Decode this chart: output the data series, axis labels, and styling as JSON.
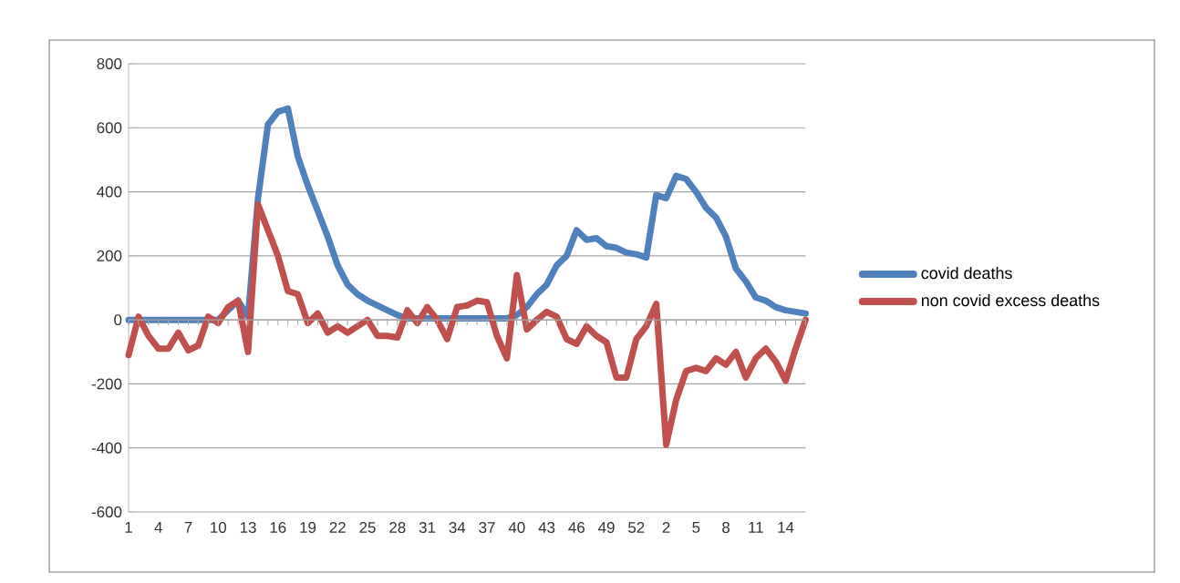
{
  "chart_data": {
    "type": "line",
    "categories": [
      "1",
      null,
      null,
      "4",
      null,
      null,
      "7",
      null,
      null,
      "10",
      null,
      null,
      "13",
      null,
      null,
      "16",
      null,
      null,
      "19",
      null,
      null,
      "22",
      null,
      null,
      "25",
      null,
      null,
      "28",
      null,
      null,
      "31",
      null,
      null,
      "34",
      null,
      null,
      "37",
      null,
      null,
      "40",
      null,
      null,
      "43",
      null,
      null,
      "46",
      null,
      null,
      "49",
      null,
      null,
      "52",
      null,
      null,
      "2",
      null,
      null,
      "5",
      null,
      null,
      "8",
      null,
      null,
      "11",
      null,
      null,
      "14",
      null,
      null
    ],
    "series": [
      {
        "name": "covid deaths",
        "color": "#4f81bd",
        "values": [
          0,
          0,
          0,
          0,
          0,
          0,
          0,
          0,
          0,
          0,
          30,
          60,
          10,
          380,
          610,
          650,
          660,
          510,
          420,
          340,
          260,
          170,
          110,
          80,
          60,
          45,
          30,
          15,
          5,
          5,
          5,
          5,
          5,
          5,
          5,
          5,
          5,
          5,
          5,
          15,
          40,
          80,
          110,
          170,
          200,
          280,
          250,
          255,
          230,
          225,
          210,
          205,
          195,
          390,
          380,
          450,
          440,
          400,
          350,
          320,
          260,
          160,
          120,
          70,
          60,
          40,
          30,
          25,
          20
        ]
      },
      {
        "name": "non covid excess deaths",
        "color": "#c0504d",
        "values": [
          -110,
          10,
          -50,
          -90,
          -90,
          -40,
          -95,
          -80,
          10,
          -10,
          40,
          60,
          -100,
          360,
          280,
          200,
          90,
          80,
          -10,
          20,
          -40,
          -20,
          -40,
          -20,
          0,
          -50,
          -50,
          -55,
          30,
          -10,
          40,
          0,
          -60,
          40,
          45,
          60,
          55,
          -50,
          -120,
          140,
          -30,
          0,
          25,
          10,
          -60,
          -75,
          -20,
          -50,
          -70,
          -180,
          -180,
          -60,
          -20,
          50,
          -390,
          -250,
          -160,
          -150,
          -160,
          -120,
          -140,
          -100,
          -180,
          -120,
          -90,
          -130,
          -190,
          -90,
          0
        ]
      }
    ],
    "ylim": [
      -600,
      800
    ],
    "yticks": [
      -600,
      -400,
      -200,
      0,
      200,
      400,
      600,
      800
    ],
    "grid": "y",
    "legend": "right",
    "marker": "none",
    "line_style": "solid"
  }
}
